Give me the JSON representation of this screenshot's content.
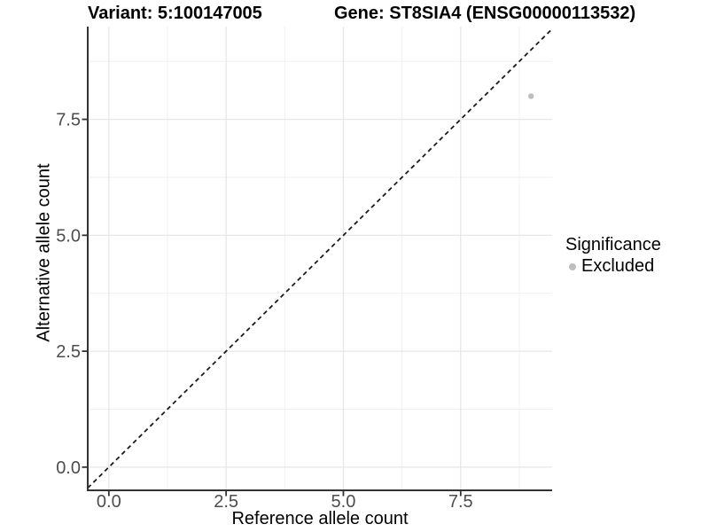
{
  "chart_data": {
    "type": "scatter",
    "title_left": "Variant: 5:100147005",
    "title_right": "Gene: ST8SIA4 (ENSG00000113532)",
    "xlabel": "Reference allele count",
    "ylabel": "Alternative allele count",
    "xlim": [
      -0.45,
      9.45
    ],
    "ylim": [
      -0.5,
      9.5
    ],
    "x_ticks": [
      0.0,
      2.5,
      5.0,
      7.5
    ],
    "y_ticks": [
      0.0,
      2.5,
      5.0,
      7.5
    ],
    "x_tick_labels": [
      "0.0",
      "2.5",
      "5.0",
      "7.5"
    ],
    "y_tick_labels": [
      "0.0",
      "2.5",
      "5.0",
      "7.5"
    ],
    "x_minor_ticks": [
      1.25,
      3.75,
      6.25,
      8.75
    ],
    "y_minor_ticks": [
      1.25,
      3.75,
      6.25,
      8.75
    ],
    "grid": true,
    "series": [
      {
        "name": "Excluded",
        "color": "#bebebe",
        "points": [
          {
            "x": 9,
            "y": 8,
            "significance": "Excluded"
          }
        ]
      }
    ],
    "reference_line": {
      "type": "identity",
      "style": "dashed",
      "color": "#1a1a1a"
    },
    "legend": {
      "title": "Significance",
      "position": "right",
      "items": [
        {
          "label": "Excluded",
          "color": "#bebebe"
        }
      ]
    }
  },
  "colors": {
    "background": "#ffffff",
    "axis_line": "#333333",
    "tick_label": "#4d4d4d",
    "grid_major": "#e7e7e7",
    "grid_minor": "#f1f1f1",
    "point": "#bebebe",
    "dashed_line": "#1a1a1a"
  }
}
